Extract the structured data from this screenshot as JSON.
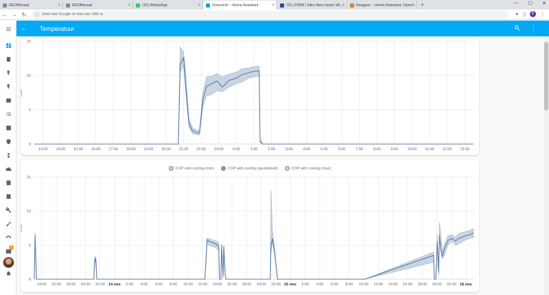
{
  "browser": {
    "tabs": [
      {
        "label": "REOBtmaal",
        "color": "#7b8a9a",
        "active": false
      },
      {
        "label": "REOBtmaal",
        "color": "#7b8a9a",
        "active": false
      },
      {
        "label": "(15) WhatsApp",
        "color": "#25d366",
        "active": false
      },
      {
        "label": "Overzicht – Home Assistant",
        "color": "#03a9f4",
        "active": true
      },
      {
        "label": "761-37846 | Niko New Hydro Wi...",
        "color": "#1f4e9b",
        "active": false
      },
      {
        "label": "Reageer – Home Assistant: Open...",
        "color": "#d9822b",
        "active": false
      }
    ],
    "omnibox_placeholder": "Zoek met Google of voer een URL in",
    "profile_initial": "E",
    "window_controls": [
      "—",
      "☐",
      "✕"
    ],
    "new_tab": "+"
  },
  "appbar": {
    "title": "Temperatuur",
    "back_icon": "arrow-left-icon",
    "search_icon": "search-icon",
    "menu_icon": "more-vert-icon"
  },
  "sidebar": {
    "icons": [
      "menu-icon",
      "dashboard-icon",
      "energy-icon",
      "flash-icon",
      "flash-alt-icon",
      "badge-icon",
      "list-icon",
      "chart-icon",
      "shield-icon",
      "tree-icon",
      "cloud-icon",
      "device-icon",
      "device-alt-icon",
      "wrench-icon",
      "hammer-icon",
      "gauge-icon",
      "terminal-icon",
      "bell-icon"
    ],
    "notification_count": "1",
    "accent": "#03a9f4"
  },
  "chart_data": [
    {
      "type": "area",
      "title": "",
      "ylabel": "COP",
      "ylim": [
        0,
        15
      ],
      "yticks": [
        "0",
        "5",
        "10",
        "15"
      ],
      "xticks": [
        "13:00",
        "14:00",
        "15:00",
        "16:00",
        "17:00",
        "18:00",
        "19:00",
        "20:00",
        "21:00",
        "22:00",
        "23:00",
        "0:00",
        "1:00",
        "2:00",
        "3:00",
        "4:00",
        "5:00",
        "6:00",
        "7:00",
        "8:00",
        "9:00",
        "10:00",
        "11:00",
        "12:00",
        "13:00"
      ],
      "x_start_hour": 12.5,
      "x_end_hour": 37.5,
      "series": [
        {
          "values_hours": [
            12.5,
            20.5,
            20.7,
            20.8,
            21.0,
            21.1,
            21.3,
            21.5,
            21.7,
            21.9,
            22.1,
            22.3,
            22.6,
            22.9,
            23.2,
            23.6,
            24.0,
            24.3,
            24.7,
            25.0,
            25.3,
            25.35,
            25.5,
            37.5
          ],
          "min": [
            0,
            0,
            0,
            10.4,
            11.5,
            8.0,
            2.5,
            1.5,
            1.4,
            1.3,
            5.5,
            7.0,
            7.2,
            7.8,
            7.6,
            8.3,
            8.8,
            9.0,
            9.6,
            9.8,
            9.9,
            0.2,
            0,
            0
          ],
          "mean": [
            0,
            0,
            0,
            11.6,
            12.6,
            9.1,
            3.0,
            1.9,
            1.7,
            1.6,
            6.6,
            8.4,
            8.8,
            9.2,
            8.3,
            9.3,
            9.6,
            10.1,
            10.4,
            10.6,
            10.7,
            0.4,
            0,
            0
          ],
          "max": [
            0,
            0,
            0,
            14.2,
            13.4,
            10.8,
            3.8,
            2.4,
            2.1,
            2.0,
            7.6,
            9.8,
            9.9,
            10.3,
            9.8,
            10.2,
            10.5,
            11.0,
            11.1,
            11.3,
            11.4,
            0.8,
            0,
            0
          ]
        }
      ],
      "colors": {
        "line": "#5a7ba4",
        "fill": "#b8c7d8",
        "grid": "#e6e6e6"
      }
    },
    {
      "type": "area",
      "title": "",
      "ylabel": "COP",
      "ylim": [
        0,
        15
      ],
      "yticks": [
        "0",
        "5",
        "10",
        "15"
      ],
      "xticks": [
        "14:00",
        "16:00",
        "18:00",
        "20:00",
        "22:00",
        "14 nov.",
        "2:00",
        "4:00",
        "6:00",
        "8:00",
        "10:00",
        "12:00",
        "14:00",
        "16:00",
        "18:00",
        "20:00",
        "22:00",
        "15 nov.",
        "2:00",
        "4:00",
        "6:00",
        "8:00",
        "10:00",
        "12:00",
        "14:00",
        "16:00",
        "18:00",
        "20:00",
        "22:00",
        "16 nov."
      ],
      "bold_ticks": [
        "14 nov.",
        "15 nov.",
        "16 nov."
      ],
      "x_start_hour": 12.5,
      "x_end_hour": 73.0,
      "legend": [
        {
          "label": "COP with cooling (min)",
          "fill": "#c7d4e3"
        },
        {
          "label": "COP with cooling (gemiddeld)",
          "fill": "#7e98b9"
        },
        {
          "label": "COP with cooling (max)",
          "fill": "#c7d4e3"
        }
      ],
      "series": [
        {
          "values_hours": [
            12.5,
            12.6,
            12.8,
            13.0,
            20.7,
            20.8,
            20.9,
            21.0,
            21.1,
            21.2,
            36.0,
            36.3,
            36.5,
            37.0,
            37.5,
            37.9,
            38.0,
            38.2,
            38.3,
            38.5,
            38.6,
            38.8,
            38.9,
            45.0,
            45.1,
            45.3,
            45.6,
            46.0,
            46.1,
            58.0,
            67.5,
            67.6,
            67.8,
            68.0,
            68.2,
            68.3,
            68.5,
            68.7,
            69.0,
            69.5,
            70.0,
            70.5,
            71.0,
            71.5,
            72.0,
            72.5,
            73.0
          ],
          "min": [
            0,
            6.0,
            0,
            0,
            0,
            2.0,
            2.8,
            2.2,
            0,
            0,
            0,
            5.3,
            5.0,
            4.8,
            4.6,
            4.2,
            0,
            0,
            4.5,
            0.2,
            3.5,
            0.3,
            0,
            0,
            4.0,
            5.5,
            3.5,
            0,
            0,
            0,
            2.5,
            0,
            0,
            4.5,
            0.5,
            5.8,
            4.0,
            3.0,
            3.5,
            5.0,
            5.5,
            5.0,
            5.2,
            5.5,
            5.8,
            6.0,
            6.1
          ],
          "mean": [
            0,
            6.5,
            0,
            0,
            0,
            2.4,
            3.1,
            2.6,
            0,
            0,
            0,
            5.8,
            5.6,
            5.4,
            5.2,
            4.8,
            0,
            0,
            5.0,
            0.4,
            4.8,
            0.6,
            0,
            0,
            5.0,
            6.0,
            4.0,
            0,
            0,
            0,
            3.5,
            0,
            0,
            5.5,
            1.0,
            6.5,
            4.5,
            3.3,
            4.5,
            5.7,
            6.0,
            5.6,
            6.0,
            6.2,
            6.4,
            6.5,
            6.8
          ],
          "max": [
            0,
            6.8,
            0,
            0,
            0,
            3.2,
            3.4,
            3.0,
            0,
            0,
            0,
            6.0,
            6.0,
            5.8,
            5.6,
            5.4,
            0,
            0,
            5.2,
            0.6,
            5.0,
            0.8,
            0,
            0,
            13.0,
            7.2,
            4.5,
            0,
            0,
            0,
            4.0,
            0,
            0,
            6.5,
            1.5,
            8.3,
            6.5,
            4.0,
            5.2,
            6.4,
            6.5,
            6.2,
            6.7,
            6.9,
            7.0,
            7.2,
            7.4
          ]
        }
      ],
      "colors": {
        "line": "#5a7ba4",
        "fill": "#b8c7d8",
        "grid": "#e6e6e6"
      }
    }
  ]
}
